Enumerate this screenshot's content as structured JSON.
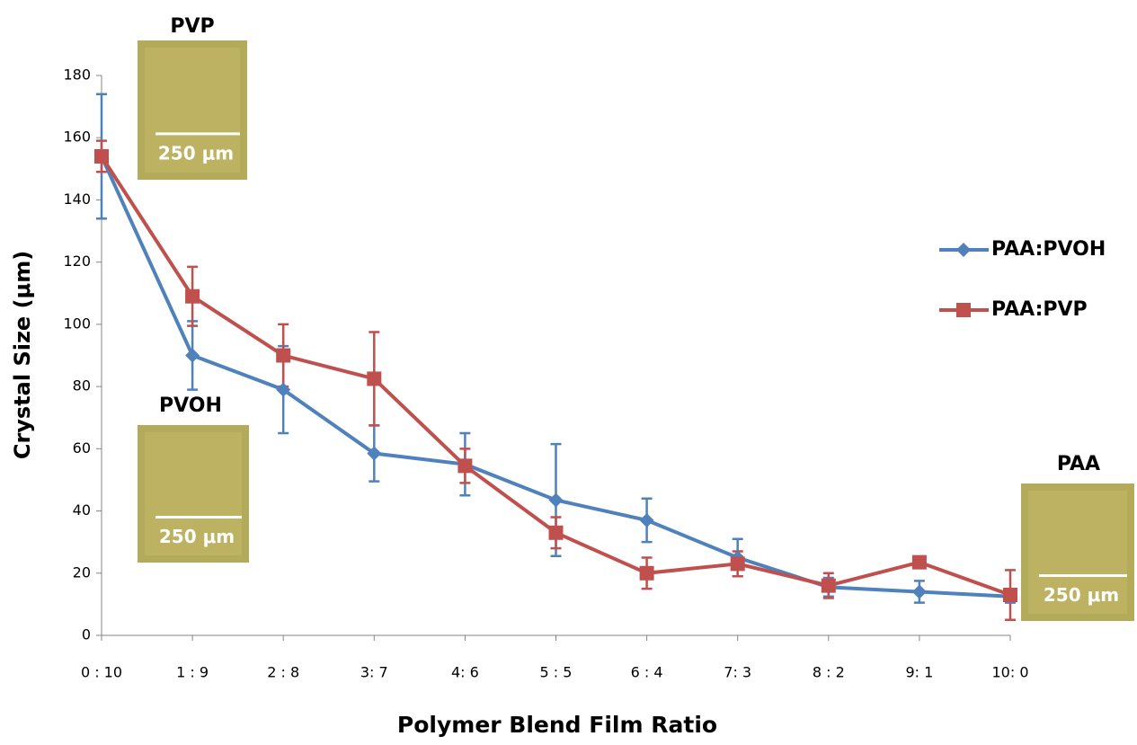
{
  "chart_data": {
    "type": "line",
    "x_label": "Polymer Blend Film Ratio",
    "y_label": "Crystal Size (μm)",
    "categories": [
      "0 : 10",
      "1 : 9",
      "2 : 8",
      "3: 7",
      "4: 6",
      "5 : 5",
      "6 : 4",
      "7: 3",
      "8 : 2",
      "9: 1",
      "10: 0"
    ],
    "series": [
      {
        "name": "PAA:PVOH",
        "color": "#4f81bd",
        "marker": "diamond",
        "values": [
          154,
          90,
          79,
          58.5,
          55,
          43.5,
          37,
          25,
          15.5,
          14,
          12.5
        ],
        "errors": [
          20,
          11,
          14,
          9,
          10,
          18,
          7,
          6,
          3,
          3.5,
          2
        ]
      },
      {
        "name": "PAA:PVP",
        "color": "#c0504d",
        "marker": "square",
        "values": [
          154,
          109,
          90,
          82.5,
          54.5,
          33,
          20,
          23,
          16,
          23.5,
          13
        ],
        "errors": [
          5,
          9.5,
          10,
          15,
          5.5,
          5,
          5,
          4,
          4,
          1.5,
          8
        ]
      }
    ],
    "ylim": [
      0,
      180
    ],
    "yticks": [
      0,
      20,
      40,
      60,
      80,
      100,
      120,
      140,
      160,
      180
    ],
    "grid": false,
    "legend": "right",
    "insets": [
      {
        "label": "PVP",
        "scale": "250 μm"
      },
      {
        "label": "PVOH",
        "scale": "250 μm"
      },
      {
        "label": "PAA",
        "scale": "250 μm"
      }
    ]
  }
}
